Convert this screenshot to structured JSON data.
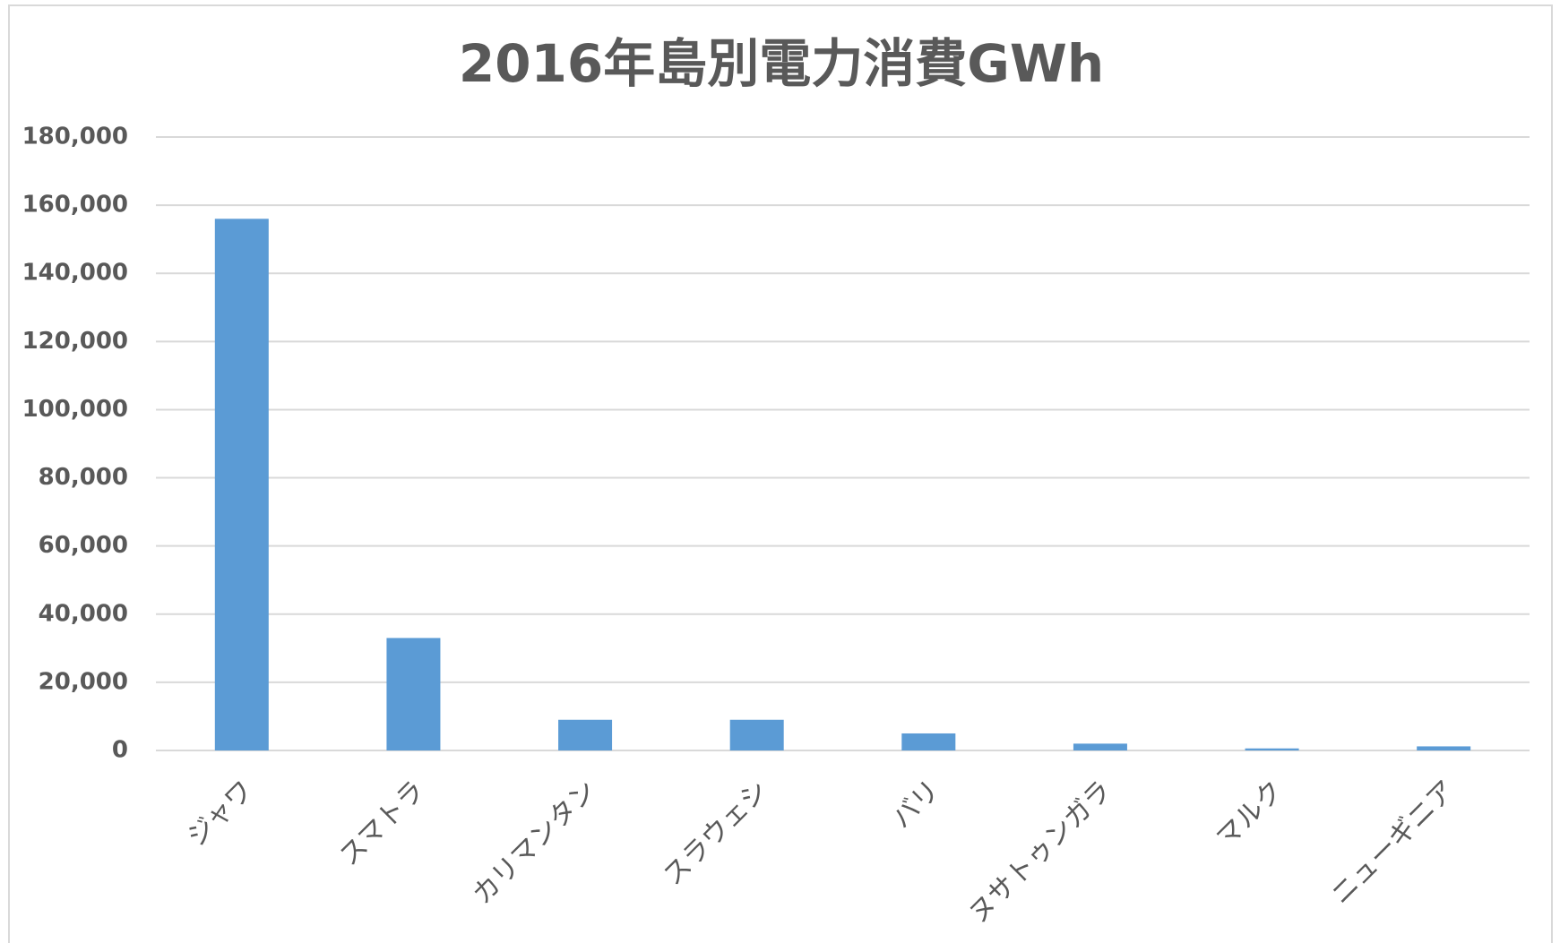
{
  "chart_data": {
    "type": "bar",
    "title": "2016年島別電力消費GWh",
    "categories": [
      "ジャワ",
      "スマトラ",
      "カリマンタン",
      "スラウェシ",
      "バリ",
      "ヌサトゥンガラ",
      "マルク",
      "ニューギニア"
    ],
    "values": [
      156000,
      33000,
      9000,
      9000,
      5000,
      2000,
      600,
      1200
    ],
    "color": "#5b9bd5",
    "ylim": [
      0,
      180000
    ],
    "yticks": [
      0,
      {
        "value": 20000,
        "label": "20,000"
      },
      {
        "value": 40000,
        "label": "40,000"
      },
      {
        "value": 60000,
        "label": "60,000"
      },
      {
        "value": 80000,
        "label": "80,000"
      },
      {
        "value": 100000,
        "label": "100,000"
      },
      {
        "value": 120000,
        "label": "120,000"
      },
      {
        "value": 140000,
        "label": "140,000"
      },
      {
        "value": 160000,
        "label": "160,000"
      },
      {
        "value": 180000,
        "label": "180,000"
      }
    ],
    "grid": true
  }
}
